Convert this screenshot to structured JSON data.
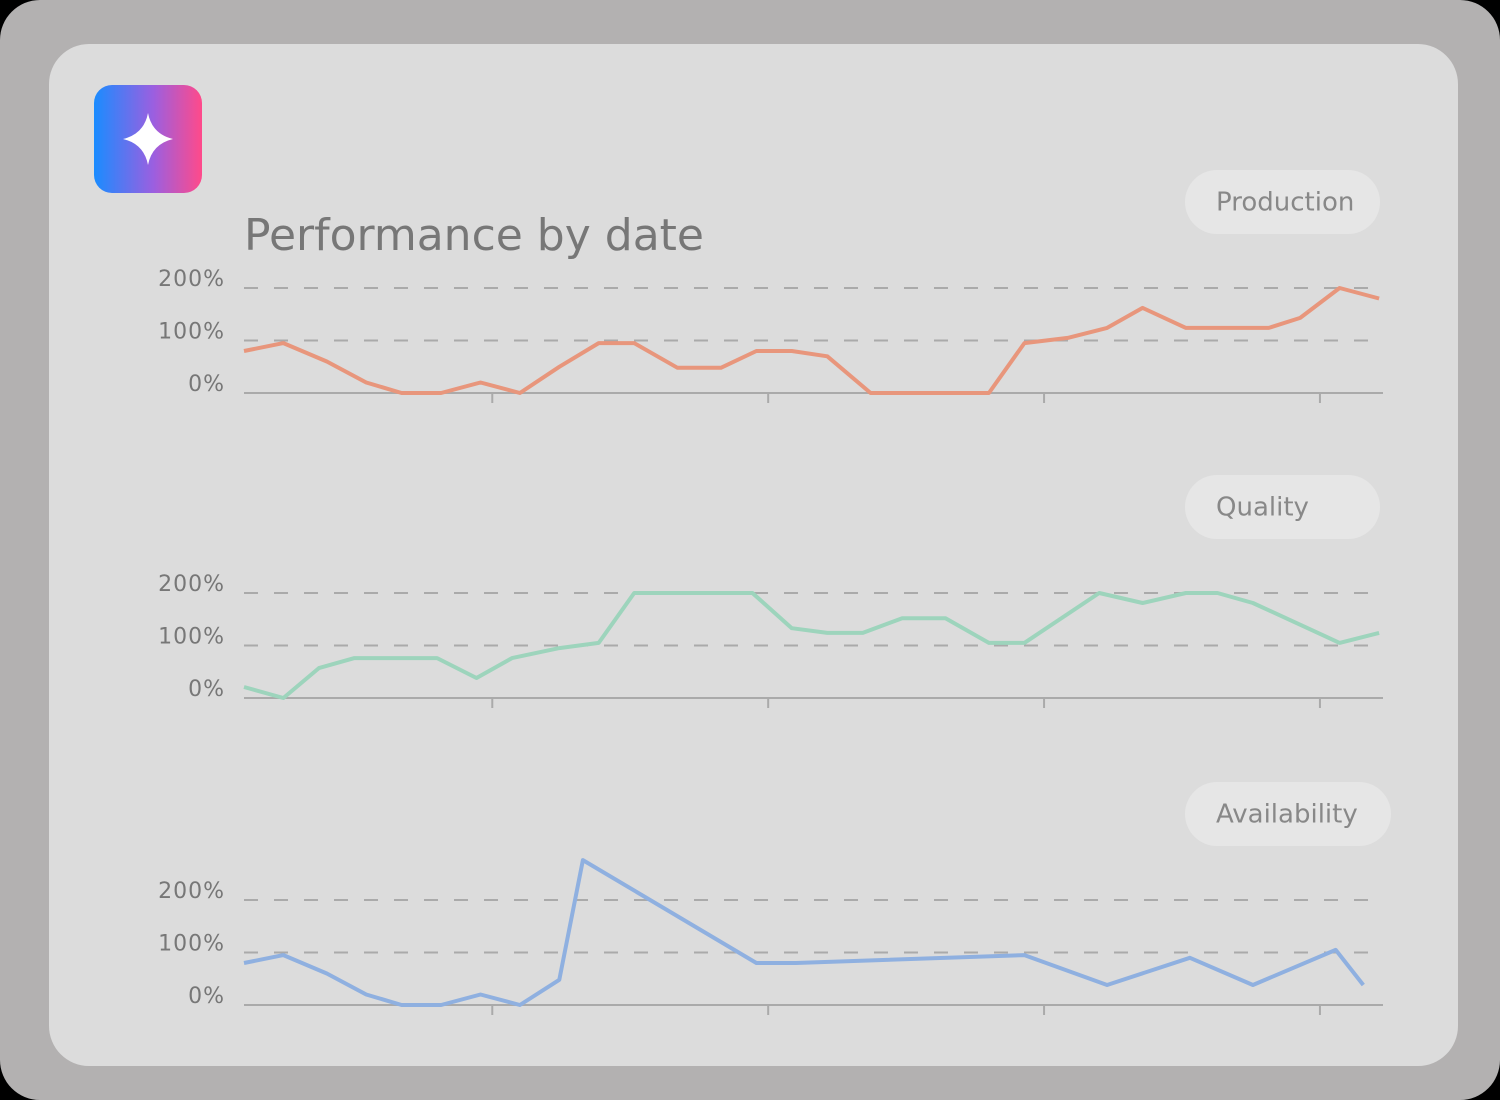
{
  "header": {
    "title": "Performance by date"
  },
  "chart_data": [
    {
      "type": "line",
      "title": "Production",
      "color": "#e8967c",
      "x": [
        0.7,
        1.7,
        2.8,
        3.8,
        4.7,
        5.7,
        6.7,
        7.7,
        8.7,
        9.7,
        10.6,
        11.7,
        12.8,
        13.7,
        14.6,
        15.5,
        16.6,
        19.6,
        20.5,
        21.6,
        22.6,
        23.5,
        24.6,
        26.7,
        27.5,
        28.5,
        29.5
      ],
      "values": [
        80,
        95,
        60,
        20,
        0,
        0,
        20,
        0,
        50,
        95,
        95,
        48,
        48,
        80,
        80,
        70,
        0,
        0,
        95,
        105,
        124,
        162,
        124,
        124,
        143,
        200,
        180
      ],
      "xlim": [
        0.7,
        29.6
      ],
      "xticks": [
        7,
        14,
        21,
        28
      ],
      "ylim": [
        0,
        200
      ],
      "yticks": [
        {
          "value": 0,
          "label": "0%"
        },
        {
          "value": 100,
          "label": "100%"
        },
        {
          "value": 200,
          "label": "200%"
        }
      ],
      "grid": true
    },
    {
      "type": "line",
      "title": "Quality",
      "color": "#9dd4bc",
      "x": [
        0.7,
        1.7,
        2.6,
        3.5,
        5.6,
        6.6,
        7.5,
        8.7,
        9.7,
        10.6,
        13.6,
        14.6,
        15.5,
        16.4,
        17.4,
        18.5,
        19.6,
        20.5,
        22.4,
        23.5,
        24.6,
        25.4,
        26.3,
        27.4,
        28.5,
        29.5
      ],
      "values": [
        21,
        0,
        57,
        76,
        76,
        38,
        76,
        95,
        105,
        200,
        200,
        133,
        124,
        124,
        152,
        152,
        105,
        105,
        200,
        181,
        200,
        200,
        181,
        143,
        105,
        124
      ],
      "xlim": [
        0.7,
        29.6
      ],
      "xticks": [
        7,
        14,
        21,
        28
      ],
      "ylim": [
        0,
        200
      ],
      "yticks": [
        {
          "value": 0,
          "label": "0%"
        },
        {
          "value": 100,
          "label": "100%"
        },
        {
          "value": 200,
          "label": "200%"
        }
      ],
      "grid": true
    },
    {
      "type": "line",
      "title": "Availability",
      "color": "#8fb0e0",
      "x": [
        0.7,
        1.7,
        2.8,
        3.8,
        4.7,
        5.7,
        6.7,
        7.7,
        8.7,
        9.3,
        13.7,
        14.7,
        20.5,
        22.6,
        24.7,
        26.3,
        28.4,
        29.1
      ],
      "values": [
        80,
        95,
        60,
        20,
        0,
        0,
        20,
        0,
        48,
        276,
        80,
        80,
        95,
        38,
        90,
        38,
        105,
        38
      ],
      "xlim": [
        0.7,
        29.6
      ],
      "xticks": [
        7,
        14,
        21,
        28
      ],
      "ylim": [
        0,
        200
      ],
      "yticks": [
        {
          "value": 0,
          "label": "0%"
        },
        {
          "value": 100,
          "label": "100%"
        },
        {
          "value": 200,
          "label": "200%"
        }
      ],
      "grid": true
    }
  ]
}
